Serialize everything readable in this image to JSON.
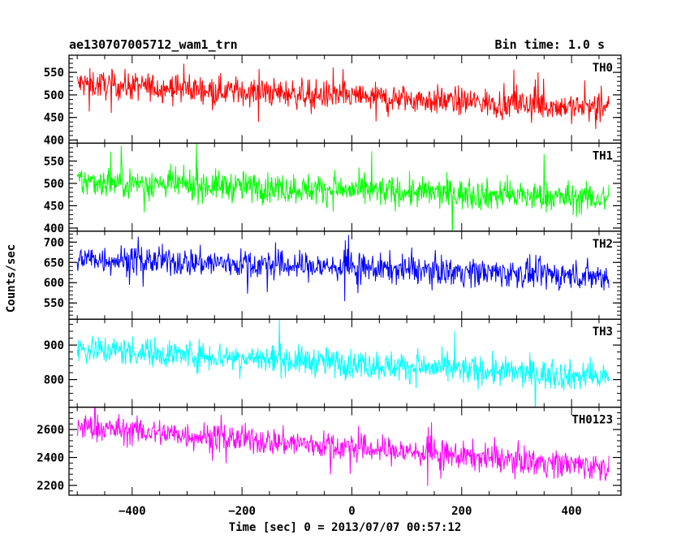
{
  "header": {
    "title": "ae130707005712_wam1_trn",
    "bin_time": "Bin time: 1.0 s"
  },
  "chart_data": {
    "type": "line",
    "xlabel": "Time [sec] 0 = 2013/07/07 00:57:12",
    "ylabel": "Counts/sec",
    "xlim": [
      -515,
      490
    ],
    "x_range": [
      -500,
      468
    ],
    "x_ticks": [
      -400,
      -200,
      0,
      200,
      400
    ],
    "x_tick_labels": [
      "−400",
      "−200",
      "0",
      "200",
      "400"
    ],
    "grid": false,
    "panels": [
      {
        "name": "TH0",
        "color": "#ff0000",
        "ylim": [
          393,
          588
        ],
        "y_ticks": [
          400,
          450,
          500,
          550
        ],
        "trend_start": 525,
        "trend_end": 470,
        "noise": 22,
        "min_seen": 395,
        "max_seen": 588
      },
      {
        "name": "TH1",
        "color": "#00ff00",
        "ylim": [
          393,
          590
        ],
        "y_ticks": [
          400,
          450,
          500,
          550
        ],
        "trend_start": 505,
        "trend_end": 465,
        "noise": 24,
        "min_seen": 410,
        "max_seen": 585
      },
      {
        "name": "TH2",
        "color": "#0000ff",
        "ylim": [
          510,
          727
        ],
        "y_ticks": [
          550,
          600,
          650,
          700
        ],
        "trend_start": 660,
        "trend_end": 615,
        "noise": 25,
        "min_seen": 520,
        "max_seen": 725
      },
      {
        "name": "TH3",
        "color": "#00ffff",
        "ylim": [
          720,
          975
        ],
        "y_ticks": [
          800,
          900
        ],
        "trend_start": 890,
        "trend_end": 805,
        "noise": 30,
        "min_seen": 725,
        "max_seen": 975
      },
      {
        "name": "TH0123",
        "color": "#ff00ff",
        "ylim": [
          2130,
          2760
        ],
        "y_ticks": [
          2200,
          2400,
          2600
        ],
        "trend_start": 2620,
        "trend_end": 2330,
        "noise": 70,
        "min_seen": 2140,
        "max_seen": 2750
      }
    ]
  }
}
